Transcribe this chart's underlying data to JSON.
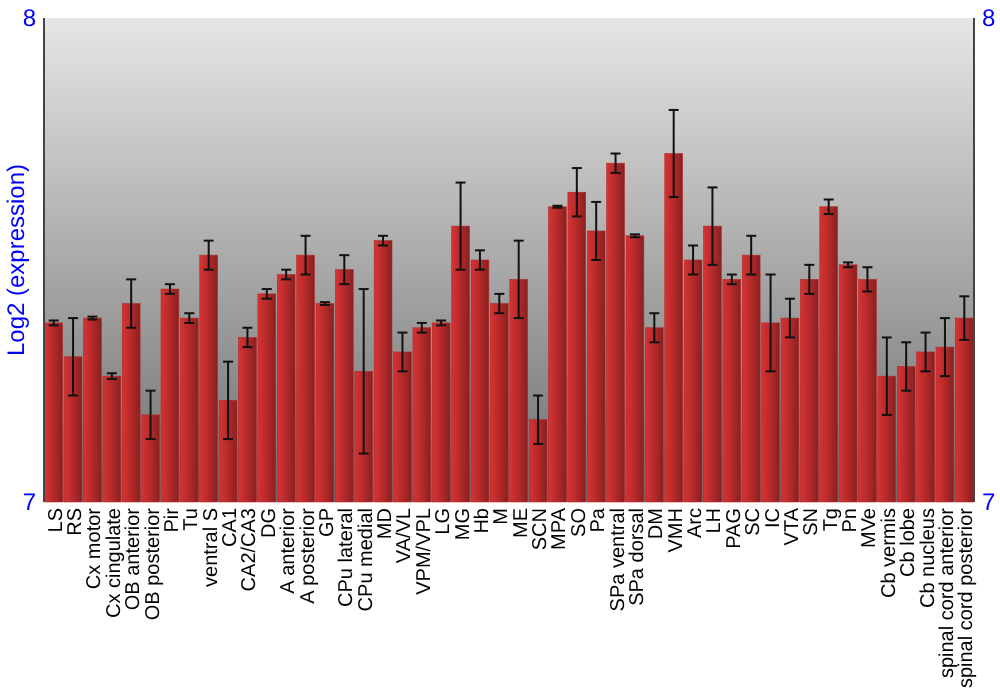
{
  "chart_data": {
    "type": "bar",
    "ylabel": "Log2 (expression)",
    "categories": [
      "LS",
      "RS",
      "Cx motor",
      "Cx cingulate",
      "OB anterior",
      "OB posterior",
      "Pir",
      "Tu",
      "ventral S",
      "CA1",
      "CA2/CA3",
      "DG",
      "A anterior",
      "A posterior",
      "GP",
      "CPu lateral",
      "CPu medial",
      "MD",
      "VA/VL",
      "VPM/VPL",
      "LG",
      "MG",
      "Hb",
      "M",
      "ME",
      "SCN",
      "MPA",
      "SO",
      "Pa",
      "SPa ventral",
      "SPa dorsal",
      "DM",
      "VMH",
      "Arc",
      "LH",
      "PAG",
      "SC",
      "IC",
      "VTA",
      "SN",
      "Tg",
      "Pn",
      "MVe",
      "Cb vermis",
      "Cb lobe",
      "Cb nucleus",
      "spinal cord anterior",
      "spinal cord posterior"
    ],
    "values": [
      7.37,
      7.3,
      7.38,
      7.26,
      7.41,
      7.18,
      7.44,
      7.38,
      7.51,
      7.21,
      7.34,
      7.43,
      7.47,
      7.51,
      7.41,
      7.48,
      7.27,
      7.54,
      7.31,
      7.36,
      7.37,
      7.57,
      7.5,
      7.41,
      7.46,
      7.17,
      7.61,
      7.64,
      7.56,
      7.7,
      7.55,
      7.36,
      7.72,
      7.5,
      7.57,
      7.46,
      7.51,
      7.37,
      7.38,
      7.46,
      7.61,
      7.49,
      7.46,
      7.26,
      7.28,
      7.31,
      7.32,
      7.38
    ],
    "errors": [
      0.005,
      0.08,
      0.003,
      0.006,
      0.05,
      0.05,
      0.01,
      0.01,
      0.03,
      0.08,
      0.02,
      0.01,
      0.01,
      0.04,
      0.003,
      0.03,
      0.17,
      0.01,
      0.04,
      0.01,
      0.005,
      0.09,
      0.02,
      0.02,
      0.08,
      0.05,
      0.002,
      0.05,
      0.06,
      0.02,
      0.003,
      0.03,
      0.09,
      0.03,
      0.08,
      0.01,
      0.04,
      0.1,
      0.04,
      0.03,
      0.015,
      0.005,
      0.025,
      0.08,
      0.05,
      0.04,
      0.06,
      0.045
    ],
    "color": "#b52a2a",
    "ylim": [
      7,
      8
    ],
    "yticks": [
      7,
      8
    ],
    "y2lim": [
      7,
      8
    ],
    "y2ticks": [
      7,
      8
    ],
    "grid": false
  }
}
